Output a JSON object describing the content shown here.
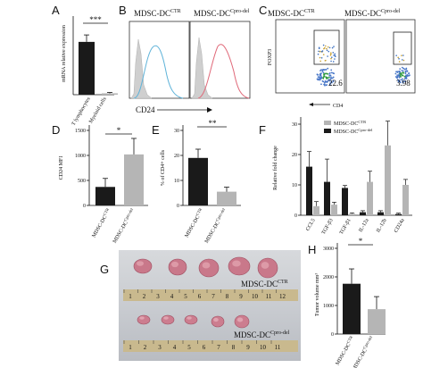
{
  "panels": {
    "A": {
      "letter": "A",
      "ylabel": "mRNA relative expression",
      "categories": [
        "T lymphocytes",
        "Myeloid cells"
      ],
      "significance": "***"
    },
    "B": {
      "letter": "B",
      "title_ctr": "MDSC-DC",
      "title_ctr_sup": "CTR",
      "title_del": "MDSC-DC",
      "title_del_sup": "Cpro-del",
      "xlabel": "CD24"
    },
    "C": {
      "letter": "C",
      "title_ctr": "MDSC-DC",
      "title_ctr_sup": "CTR",
      "title_del": "MDSC-DC",
      "title_del_sup": "Cpro-del",
      "ylabel": "FOXP3",
      "xlabel": "CD4",
      "gate_ctr": "22.6",
      "gate_del": "3.98"
    },
    "D": {
      "letter": "D",
      "ylabel": "CD24 MFI",
      "yticks": [
        "0",
        "500",
        "1000",
        "1500"
      ],
      "categories": [
        "MDSC-DC",
        "MDSC-DC"
      ],
      "category_sups": [
        "CTR",
        "Cpro-del"
      ],
      "significance": "*"
    },
    "E": {
      "letter": "E",
      "ylabel": "% of CD4+ cells",
      "yticks": [
        "0",
        "10",
        "20",
        "30"
      ],
      "categories": [
        "MDSC-DC",
        "MDSC-DC"
      ],
      "category_sups": [
        "CTR",
        "Cpro-del"
      ],
      "significance": "**"
    },
    "F": {
      "letter": "F",
      "ylabel": "Relative fold change",
      "yticks": [
        "0",
        "10",
        "20",
        "30"
      ],
      "legend": [
        "MDSC-DC",
        "MDSC-DC"
      ],
      "legend_sups": [
        "CTR",
        "Cpro-del"
      ],
      "categories": [
        "CCL5",
        "TGF-β3",
        "TGF-β1",
        "IL-12a",
        "IL-12b",
        "CD24a"
      ]
    },
    "G": {
      "letter": "G",
      "label_ctr": "MDSC-DC",
      "label_ctr_sup": "CTR",
      "label_del": "MDSC-DC",
      "label_del_sup": "Cpro-del",
      "ruler_top": [
        "1",
        "2",
        "3",
        "4",
        "5",
        "6",
        "7",
        "8",
        "9",
        "10",
        "11",
        "12"
      ],
      "ruler_bottom": [
        "1",
        "2",
        "3",
        "4",
        "5",
        "6",
        "7",
        "8",
        "9",
        "10",
        "11"
      ]
    },
    "H": {
      "letter": "H",
      "ylabel": "Tumor volume mm³",
      "yticks": [
        "0",
        "1000",
        "2000",
        "3000"
      ],
      "categories": [
        "MDSC-DC",
        "MDSC-DC"
      ],
      "category_sups": [
        "CTR",
        "Cpro-del"
      ],
      "significance": "*"
    }
  },
  "colors": {
    "black_bar": "#1a1a1a",
    "grey_bar": "#b5b5b5",
    "blue_hist": "#5fb3d9",
    "red_hist": "#e06a7a",
    "fill_hist": "#cfcfcf"
  },
  "chart_data": [
    {
      "panel": "A",
      "type": "bar",
      "categories": [
        "T lymphocytes",
        "Myeloid cells"
      ],
      "values": [
        19,
        0.5
      ],
      "errors": [
        2.5,
        0.3
      ],
      "ylim": [
        0,
        27
      ]
    },
    {
      "panel": "D",
      "type": "bar",
      "categories": [
        "MDSC-DC CTR",
        "MDSC-DC Cpro-del"
      ],
      "values": [
        370,
        1020
      ],
      "errors": [
        170,
        320
      ],
      "ylim": [
        0,
        1500
      ]
    },
    {
      "panel": "E",
      "type": "bar",
      "categories": [
        "MDSC-DC CTR",
        "MDSC-DC Cpro-del"
      ],
      "values": [
        19,
        5.5
      ],
      "errors": [
        3.5,
        1.8
      ],
      "ylim": [
        0,
        30
      ]
    },
    {
      "panel": "F",
      "type": "bar",
      "categories": [
        "CCL5",
        "TGF-β3",
        "TGF-β1",
        "IL-12a",
        "IL-12b",
        "CD24a"
      ],
      "series": [
        {
          "name": "MDSC-DC CTR",
          "values": [
            16,
            11,
            9,
            1,
            1,
            0.4
          ],
          "errors": [
            5,
            7.5,
            0.8,
            0.5,
            0.5,
            0.3
          ]
        },
        {
          "name": "MDSC-DC Cpro-del",
          "values": [
            3,
            3.5,
            0.5,
            11,
            23,
            10
          ],
          "errors": [
            1.5,
            0.8,
            0.3,
            3.5,
            8,
            1.8
          ]
        }
      ],
      "ylim": [
        0,
        30
      ]
    },
    {
      "panel": "H",
      "type": "bar",
      "categories": [
        "MDSC-DC CTR",
        "MDSC-DC Cpro-del"
      ],
      "values": [
        1760,
        870
      ],
      "errors": [
        520,
        440
      ],
      "ylim": [
        0,
        3000
      ]
    }
  ]
}
